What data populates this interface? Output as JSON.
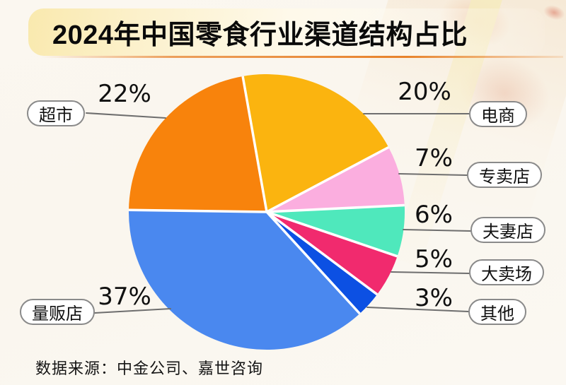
{
  "header": {
    "title": "2024年中国零食行业渠道结构占比"
  },
  "chart_data": {
    "type": "pie",
    "title": "2024年中国零食行业渠道结构占比",
    "direction": "clockwise",
    "start_angle_deg_from_top": -10,
    "slices": [
      {
        "label": "电商",
        "value": 20,
        "pct_label": "20%",
        "color": "#FBB40F"
      },
      {
        "label": "专卖店",
        "value": 7,
        "pct_label": "7%",
        "color": "#FBAEDF"
      },
      {
        "label": "夫妻店",
        "value": 6,
        "pct_label": "6%",
        "color": "#4FE8BC"
      },
      {
        "label": "大卖场",
        "value": 5,
        "pct_label": "5%",
        "color": "#F12A6E"
      },
      {
        "label": "其他",
        "value": 3,
        "pct_label": "3%",
        "color": "#0C50E3"
      },
      {
        "label": "量贩店",
        "value": 37,
        "pct_label": "37%",
        "color": "#4A88EF"
      },
      {
        "label": "超市",
        "value": 22,
        "pct_label": "22%",
        "color": "#F8830C"
      }
    ]
  },
  "footer": {
    "source": "数据来源：中金公司、嘉世咨询"
  },
  "colors": {
    "leader_line": "#6E6E6E",
    "pill_border": "#8A8A8A",
    "underline_orange": "#E8822A",
    "slice_separator": "#FFFFFF",
    "background": "#FAF6EE"
  }
}
